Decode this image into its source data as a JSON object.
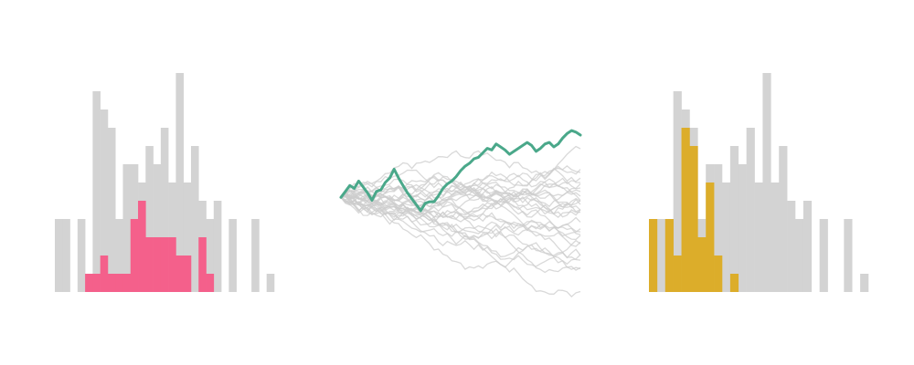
{
  "colors": {
    "background": "#ffffff",
    "context_gray": "#d3d3d3",
    "path_gray": "#cccccc",
    "pink": "#f4608b",
    "green": "#4aa88a",
    "yellow": "#dcad2a"
  },
  "chart_data": [
    {
      "type": "bar",
      "panel": "left-histogram",
      "series": [
        {
          "color": "#d3d3d3",
          "values": [
            4,
            4,
            0,
            4,
            1,
            11,
            10,
            9,
            4,
            7,
            7,
            6,
            8,
            7,
            9,
            6,
            12,
            6,
            8,
            5,
            4,
            5,
            0,
            4,
            0,
            0,
            4,
            0,
            1
          ]
        },
        {
          "color": "#f4608b",
          "values": [
            0,
            0,
            0,
            0,
            1,
            1,
            2,
            1,
            1,
            1,
            4,
            5,
            3,
            3,
            3,
            3,
            2,
            2,
            0,
            3,
            1,
            0,
            0,
            0,
            0,
            0,
            0,
            0,
            0
          ]
        }
      ],
      "bar_mode": "overlay",
      "ylim": [
        0,
        12
      ]
    },
    {
      "type": "line",
      "panel": "middle-paths",
      "highlight_color": "#4aa88a",
      "background_color": "#cccccc",
      "x_count": 55,
      "highlight": [
        0.0,
        0.4,
        0.8,
        0.6,
        1.1,
        0.7,
        0.3,
        -0.2,
        0.4,
        0.5,
        1.0,
        1.3,
        1.9,
        1.3,
        0.8,
        0.3,
        -0.1,
        -0.5,
        -0.9,
        -0.4,
        -0.3,
        -0.3,
        0.1,
        0.6,
        0.9,
        1.1,
        1.4,
        1.8,
        2.1,
        2.3,
        2.6,
        2.7,
        3.0,
        3.3,
        3.2,
        3.6,
        3.4,
        3.2,
        2.9,
        3.1,
        3.3,
        3.5,
        3.7,
        3.5,
        3.1,
        3.3,
        3.6,
        3.7,
        3.4,
        3.6,
        4.0,
        4.3,
        4.5,
        4.4,
        4.2
      ],
      "background_paths": 30,
      "background_seed": 7,
      "ylim": [
        -7.0,
        9.0
      ]
    },
    {
      "type": "bar",
      "panel": "right-histogram",
      "series": [
        {
          "color": "#d3d3d3",
          "values": [
            4,
            4,
            4,
            11,
            10,
            9,
            4,
            7,
            7,
            6,
            8,
            7,
            9,
            6,
            12,
            6,
            8,
            5,
            4,
            5,
            0,
            4,
            0,
            0,
            4,
            0,
            1
          ]
        },
        {
          "color": "#dcad2a",
          "values": [
            4,
            0,
            4,
            2,
            9,
            8,
            3,
            6,
            2,
            0,
            1,
            0,
            0,
            0,
            0,
            0,
            0,
            0,
            0,
            0,
            0,
            0,
            0,
            0,
            0,
            0,
            0
          ]
        }
      ],
      "bar_mode": "overlay",
      "ylim": [
        0,
        12
      ]
    }
  ]
}
